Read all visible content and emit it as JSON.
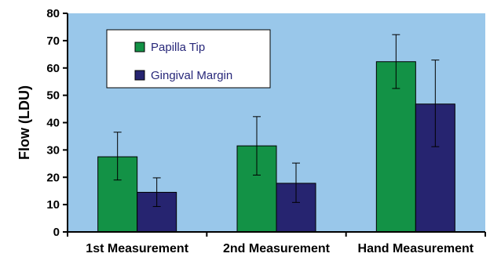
{
  "chart_data": {
    "type": "bar",
    "categories": [
      "1st Measurement",
      "2nd Measurement",
      "Hand Measurement"
    ],
    "series": [
      {
        "name": "Papilla Tip",
        "values": [
          27.5,
          31.5,
          62.3
        ],
        "error_upper": [
          36.5,
          42.2,
          72.2
        ],
        "error_lower": [
          19.0,
          20.8,
          52.5
        ],
        "color": "#139246"
      },
      {
        "name": "Gingival Margin",
        "values": [
          14.5,
          17.8,
          46.8
        ],
        "error_upper": [
          19.8,
          25.2,
          62.9
        ],
        "error_lower": [
          9.3,
          10.8,
          31.2
        ],
        "color": "#262470"
      }
    ],
    "title": "",
    "xlabel": "",
    "ylabel": "Flow (LDU)",
    "ylim": [
      0,
      80
    ],
    "yticks": [
      0,
      10,
      20,
      30,
      40,
      50,
      60,
      70,
      80
    ],
    "grid": false,
    "legend_position": "top-left",
    "plot_background": "#99c7ea",
    "legend_text_color": "#28287a"
  }
}
